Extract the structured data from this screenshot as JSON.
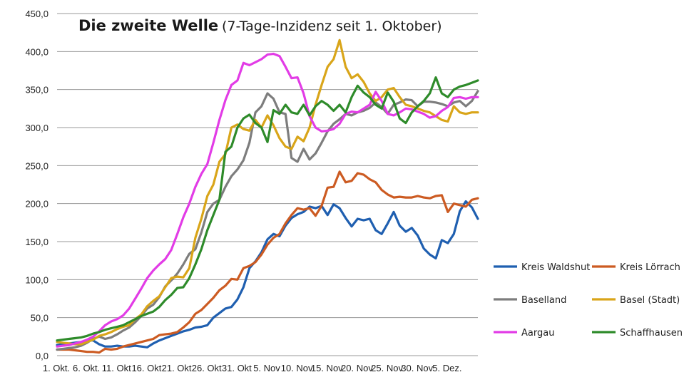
{
  "chart_data": {
    "type": "line",
    "title": "Die zweite Welle",
    "subtitle": "(7-Tage-Inzidenz seit 1. Oktober)",
    "xlabel": "",
    "ylabel": "",
    "ylim": [
      0,
      450
    ],
    "yticks": [
      "0,0",
      "50,0",
      "100,0",
      "150,0",
      "200,0",
      "250,0",
      "300,0",
      "350,0",
      "400,0",
      "450,0"
    ],
    "ytick_values": [
      0,
      50,
      100,
      150,
      200,
      250,
      300,
      350,
      400,
      450
    ],
    "xticks": [
      "1. Okt.",
      "6. Okt.",
      "11. Okt",
      "16. Okt",
      "21. Okt",
      "26. Okt",
      "31. Okt",
      "5. Nov",
      "10. Nov",
      "15. Nov",
      "20. Nov",
      "25. Nov",
      "30. Nov",
      "5. Dez."
    ],
    "xtick_days": [
      1,
      6,
      11,
      16,
      21,
      26,
      31,
      36,
      41,
      46,
      51,
      56,
      61,
      66
    ],
    "grid": true,
    "legend_position": "right",
    "series": [
      {
        "name": "Kreis Waldshut",
        "color": "#1f5fb0",
        "values": [
          14,
          15,
          16,
          17,
          18,
          20,
          20,
          15,
          12,
          12,
          13,
          12,
          12,
          13,
          12,
          11,
          16,
          20,
          23,
          26,
          29,
          32,
          34,
          37,
          38,
          40,
          50,
          56,
          62,
          64,
          74,
          90,
          115,
          124,
          136,
          153,
          160,
          157,
          171,
          181,
          186,
          189,
          196,
          194,
          197,
          185,
          199,
          194,
          181,
          170,
          180,
          178,
          180,
          165,
          160,
          174,
          189,
          171,
          163,
          168,
          158,
          141,
          133,
          128,
          152,
          148,
          160,
          190,
          203,
          195,
          180
        ]
      },
      {
        "name": "Kreis Lörrach",
        "color": "#cc5b22",
        "values": [
          8,
          8,
          8,
          7,
          6,
          5,
          5,
          4,
          9,
          8,
          9,
          12,
          14,
          16,
          18,
          20,
          22,
          27,
          28,
          29,
          31,
          37,
          44,
          55,
          60,
          68,
          76,
          86,
          92,
          101,
          100,
          115,
          118,
          123,
          133,
          146,
          155,
          160,
          174,
          185,
          194,
          192,
          194,
          184,
          197,
          221,
          222,
          242,
          228,
          230,
          240,
          238,
          232,
          228,
          218,
          212,
          208,
          209,
          208,
          208,
          210,
          208,
          207,
          210,
          211,
          189,
          200,
          198,
          196,
          205,
          207
        ]
      },
      {
        "name": "Baselland",
        "color": "#7d7d7d",
        "values": [
          8,
          9,
          10,
          11,
          13,
          17,
          22,
          25,
          22,
          24,
          28,
          33,
          37,
          44,
          52,
          62,
          67,
          77,
          91,
          99,
          108,
          120,
          134,
          140,
          162,
          189,
          200,
          205,
          222,
          236,
          245,
          257,
          280,
          320,
          328,
          345,
          338,
          320,
          318,
          260,
          255,
          272,
          258,
          266,
          280,
          295,
          305,
          311,
          318,
          316,
          320,
          322,
          326,
          333,
          327,
          318,
          330,
          333,
          337,
          336,
          328,
          334,
          334,
          333,
          331,
          328,
          333,
          335,
          328,
          335,
          348
        ]
      },
      {
        "name": "Basel (Stadt)",
        "color": "#d9a519",
        "values": [
          18,
          17,
          16,
          15,
          15,
          18,
          21,
          26,
          28,
          31,
          35,
          38,
          40,
          48,
          54,
          65,
          72,
          78,
          90,
          102,
          104,
          103,
          115,
          155,
          180,
          210,
          225,
          255,
          265,
          300,
          304,
          298,
          296,
          310,
          300,
          316,
          303,
          286,
          275,
          272,
          288,
          282,
          300,
          330,
          356,
          380,
          390,
          415,
          380,
          365,
          370,
          360,
          345,
          335,
          340,
          350,
          352,
          340,
          330,
          328,
          325,
          322,
          320,
          315,
          310,
          308,
          328,
          320,
          318,
          320,
          320
        ]
      },
      {
        "name": "Aargau",
        "color": "#e23ce6",
        "values": [
          12,
          13,
          14,
          16,
          18,
          21,
          25,
          32,
          40,
          45,
          48,
          53,
          62,
          75,
          88,
          102,
          112,
          120,
          127,
          139,
          160,
          182,
          200,
          222,
          239,
          252,
          280,
          310,
          336,
          356,
          362,
          385,
          382,
          386,
          390,
          396,
          397,
          394,
          380,
          365,
          366,
          345,
          315,
          300,
          295,
          296,
          298,
          305,
          318,
          321,
          320,
          325,
          330,
          347,
          335,
          318,
          316,
          320,
          325,
          324,
          321,
          318,
          313,
          315,
          322,
          327,
          339,
          340,
          338,
          340,
          340
        ]
      },
      {
        "name": "Schaffhausen",
        "color": "#2e8b2a",
        "values": [
          20,
          21,
          22,
          23,
          24,
          26,
          29,
          31,
          34,
          36,
          38,
          40,
          44,
          48,
          52,
          55,
          58,
          64,
          73,
          80,
          89,
          90,
          102,
          120,
          140,
          165,
          185,
          205,
          268,
          275,
          300,
          312,
          317,
          306,
          300,
          281,
          323,
          318,
          330,
          320,
          318,
          330,
          316,
          328,
          335,
          330,
          322,
          330,
          320,
          340,
          355,
          346,
          340,
          330,
          325,
          346,
          334,
          312,
          306,
          320,
          328,
          335,
          345,
          366,
          345,
          340,
          350,
          354,
          356,
          359,
          362
        ]
      }
    ]
  }
}
